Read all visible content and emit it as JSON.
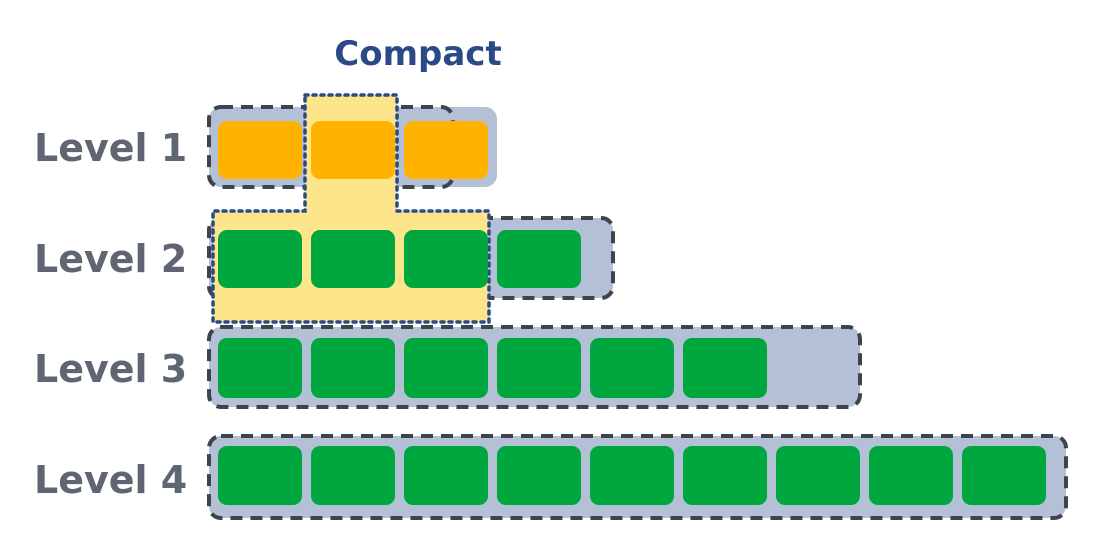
{
  "diagram": {
    "title": "Compact",
    "levels": [
      {
        "label": "Level 1",
        "block_count": 3,
        "slot_count": 3,
        "block_color": "orange"
      },
      {
        "label": "Level 2",
        "block_count": 4,
        "slot_count": 4,
        "block_color": "green"
      },
      {
        "label": "Level 3",
        "block_count": 6,
        "slot_count": 7,
        "block_color": "green"
      },
      {
        "label": "Level 4",
        "block_count": 9,
        "slot_count": 9,
        "block_color": "green"
      }
    ],
    "compaction": {
      "from_level": "Level 1",
      "from_block_index": 1,
      "to_level": "Level 2",
      "to_block_count": 3
    }
  },
  "colors": {
    "title": "#2b4a87",
    "label": "#5f6572",
    "slot_fill": "#b3c0d6",
    "slot_border": "#3f444c",
    "orange_block": "#ffb300",
    "green_block": "#00a63e",
    "highlight_fill": "#fde58c",
    "highlight_border": "#2b4a87"
  }
}
